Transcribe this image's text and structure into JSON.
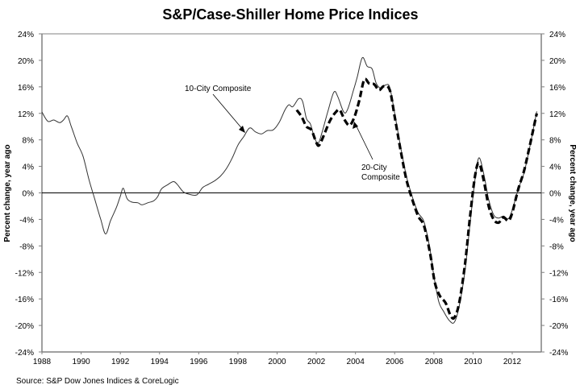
{
  "chart_data": {
    "type": "line",
    "title": "S&P/Case-Shiller Home Price Indices",
    "xlabel": "",
    "ylabel": "Percent change, year ago",
    "ylabel_right": "Percent change, year ago",
    "xlim": [
      1988,
      2013.5
    ],
    "ylim": [
      -24,
      24
    ],
    "x_ticks": [
      1988,
      1990,
      1992,
      1994,
      1996,
      1998,
      2000,
      2002,
      2004,
      2006,
      2008,
      2010,
      2012
    ],
    "x_tick_labels": [
      "1988",
      "1990",
      "1992",
      "1994",
      "1996",
      "1998",
      "2000",
      "2002",
      "2004",
      "2006",
      "2008",
      "2010",
      "2012"
    ],
    "y_ticks": [
      24,
      20,
      16,
      12,
      8,
      4,
      0,
      -4,
      -8,
      -12,
      -16,
      -20,
      -24
    ],
    "y_tick_labels": [
      "24%",
      "20%",
      "16%",
      "12%",
      "8%",
      "4%",
      "0%",
      "-4%",
      "-8%",
      "-12%",
      "-16%",
      "-20%",
      "-24%"
    ],
    "grid": false,
    "legend": "none (inline annotations)",
    "source": "Source: S&P Dow Jones Indices & CoreLogic",
    "annotations": [
      {
        "text": "10-City Composite",
        "series": "10-City Composite"
      },
      {
        "text": "20-City Composite",
        "lines": [
          "20-City",
          "Composite"
        ],
        "series": "20-City Composite"
      }
    ],
    "series": [
      {
        "name": "10-City Composite",
        "style": "solid",
        "color": "#000000",
        "x": [
          1988.0,
          1988.3,
          1988.6,
          1988.9,
          1989.1,
          1989.3,
          1989.5,
          1989.8,
          1990.1,
          1990.4,
          1990.7,
          1991.0,
          1991.25,
          1991.5,
          1991.8,
          1992.0,
          1992.15,
          1992.35,
          1992.6,
          1992.9,
          1993.1,
          1993.4,
          1993.7,
          1993.9,
          1994.1,
          1994.4,
          1994.7,
          1994.9,
          1995.2,
          1995.5,
          1995.9,
          1996.2,
          1996.5,
          1996.8,
          1997.1,
          1997.4,
          1997.7,
          1998.0,
          1998.3,
          1998.6,
          1998.9,
          1999.2,
          1999.5,
          1999.8,
          2000.1,
          2000.4,
          2000.6,
          2000.8,
          2001.1,
          2001.3,
          2001.5,
          2001.7,
          2001.9,
          2002.1,
          2002.3,
          2002.6,
          2002.9,
          2003.1,
          2003.4,
          2003.6,
          2003.9,
          2004.1,
          2004.35,
          2004.6,
          2004.85,
          2005.05,
          2005.3,
          2005.55,
          2005.75,
          2006.0,
          2006.3,
          2006.6,
          2006.9,
          2007.2,
          2007.5,
          2007.8,
          2008.0,
          2008.25,
          2008.5,
          2008.8,
          2009.05,
          2009.3,
          2009.6,
          2009.85,
          2010.1,
          2010.3,
          2010.55,
          2010.8,
          2011.05,
          2011.3,
          2011.55,
          2011.8,
          2012.0,
          2012.3,
          2012.6,
          2012.9,
          2013.25
        ],
        "values": [
          12.2,
          10.8,
          11.0,
          10.6,
          11.0,
          11.6,
          10.0,
          7.5,
          5.5,
          2.0,
          -1.0,
          -4.0,
          -6.2,
          -4.2,
          -2.2,
          -0.5,
          0.7,
          -0.9,
          -1.4,
          -1.5,
          -1.8,
          -1.5,
          -1.2,
          -0.6,
          0.6,
          1.2,
          1.7,
          1.3,
          0.2,
          -0.2,
          -0.3,
          0.8,
          1.3,
          1.8,
          2.5,
          3.6,
          5.2,
          7.2,
          8.5,
          9.8,
          9.2,
          8.9,
          9.4,
          9.5,
          10.6,
          12.5,
          13.3,
          13.0,
          14.2,
          13.8,
          11.2,
          10.4,
          8.4,
          7.5,
          9.2,
          12.4,
          15.2,
          14.5,
          12.2,
          12.6,
          15.5,
          17.6,
          20.4,
          19.1,
          18.7,
          16.6,
          15.8,
          16.3,
          15.9,
          12.0,
          7.0,
          2.5,
          -0.6,
          -3.0,
          -4.4,
          -8.5,
          -12.5,
          -16.4,
          -17.9,
          -19.3,
          -19.5,
          -17.0,
          -11.5,
          -4.5,
          2.0,
          5.3,
          2.8,
          -1.0,
          -3.3,
          -3.8,
          -3.5,
          -3.9,
          -2.6,
          0.5,
          3.0,
          7.0,
          12.3
        ]
      },
      {
        "name": "20-City Composite",
        "style": "dashed",
        "color": "#000000",
        "x": [
          2001.0,
          2001.25,
          2001.5,
          2001.75,
          2002.0,
          2002.15,
          2002.4,
          2002.7,
          2003.0,
          2003.2,
          2003.45,
          2003.7,
          2003.95,
          2004.2,
          2004.45,
          2004.7,
          2004.95,
          2005.2,
          2005.45,
          2005.75,
          2006.0,
          2006.3,
          2006.6,
          2006.9,
          2007.2,
          2007.5,
          2007.8,
          2008.05,
          2008.3,
          2008.6,
          2008.85,
          2009.05,
          2009.3,
          2009.6,
          2009.85,
          2010.1,
          2010.3,
          2010.55,
          2010.8,
          2011.05,
          2011.3,
          2011.55,
          2011.8,
          2012.0,
          2012.3,
          2012.6,
          2012.9,
          2013.25
        ],
        "values": [
          12.5,
          11.5,
          10.0,
          9.5,
          7.6,
          7.2,
          8.8,
          10.9,
          12.2,
          12.5,
          11.0,
          10.2,
          11.5,
          14.0,
          17.1,
          16.5,
          16.4,
          15.5,
          16.1,
          15.5,
          11.5,
          6.5,
          2.0,
          -1.0,
          -3.5,
          -5.0,
          -9.0,
          -13.5,
          -15.5,
          -16.6,
          -18.5,
          -18.8,
          -16.5,
          -10.5,
          -3.5,
          2.5,
          4.5,
          1.8,
          -2.0,
          -4.0,
          -4.5,
          -3.7,
          -4.2,
          -3.0,
          0.5,
          3.3,
          7.2,
          12.0
        ]
      }
    ]
  }
}
